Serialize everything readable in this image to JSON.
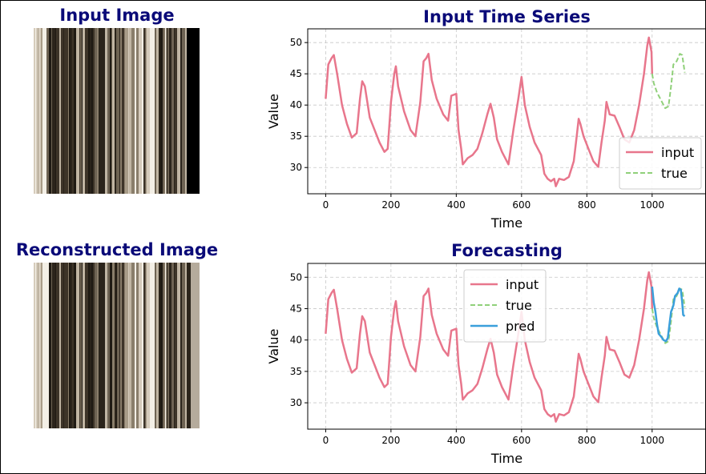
{
  "panels": {
    "input_image_title": "Input Image",
    "reconstructed_image_title": "Reconstructed Image"
  },
  "colors": {
    "title": "#0a0a78",
    "input": "#e8768c",
    "true": "#90d07a",
    "pred": "#3a9fdb",
    "grid": "#c8c8c8"
  },
  "chart_data": [
    {
      "type": "line",
      "title": "Input Time Series",
      "xlabel": "Time",
      "ylabel": "Value",
      "xlim": [
        -55,
        1165
      ],
      "ylim": [
        25.8,
        52.2
      ],
      "xticks": [
        0,
        200,
        400,
        600,
        800,
        1000
      ],
      "yticks": [
        30,
        35,
        40,
        45,
        50
      ],
      "grid": true,
      "legend_position": "lower-right",
      "series": [
        {
          "name": "input",
          "style": "solid",
          "color": "#e8768c",
          "points": [
            [
              0,
              41
            ],
            [
              8,
              46.5
            ],
            [
              18,
              47.5
            ],
            [
              25,
              48
            ],
            [
              35,
              45
            ],
            [
              50,
              40
            ],
            [
              65,
              37
            ],
            [
              80,
              34.8
            ],
            [
              95,
              35.5
            ],
            [
              105,
              41
            ],
            [
              112,
              43.8
            ],
            [
              120,
              43
            ],
            [
              135,
              38
            ],
            [
              150,
              36
            ],
            [
              165,
              34
            ],
            [
              180,
              32.5
            ],
            [
              190,
              33
            ],
            [
              200,
              40.5
            ],
            [
              210,
              45
            ],
            [
              215,
              46.2
            ],
            [
              222,
              43
            ],
            [
              240,
              39
            ],
            [
              260,
              36
            ],
            [
              275,
              35
            ],
            [
              290,
              40.5
            ],
            [
              300,
              47
            ],
            [
              308,
              47.5
            ],
            [
              315,
              48.2
            ],
            [
              325,
              44
            ],
            [
              340,
              41
            ],
            [
              360,
              38.5
            ],
            [
              375,
              37.5
            ],
            [
              385,
              41.5
            ],
            [
              400,
              41.8
            ],
            [
              407,
              36
            ],
            [
              415,
              33
            ],
            [
              420,
              30.5
            ],
            [
              435,
              31.5
            ],
            [
              450,
              32
            ],
            [
              465,
              33
            ],
            [
              480,
              35.5
            ],
            [
              495,
              38.5
            ],
            [
              505,
              40.2
            ],
            [
              515,
              38
            ],
            [
              525,
              34.5
            ],
            [
              540,
              32.5
            ],
            [
              560,
              30.5
            ],
            [
              575,
              36
            ],
            [
              590,
              41
            ],
            [
              600,
              44.5
            ],
            [
              610,
              40
            ],
            [
              625,
              36.5
            ],
            [
              640,
              34
            ],
            [
              660,
              32
            ],
            [
              670,
              29
            ],
            [
              680,
              28.2
            ],
            [
              690,
              27.8
            ],
            [
              700,
              28.2
            ],
            [
              705,
              27
            ],
            [
              715,
              28.2
            ],
            [
              730,
              28
            ],
            [
              745,
              28.5
            ],
            [
              760,
              31
            ],
            [
              770,
              35.5
            ],
            [
              775,
              37.8
            ],
            [
              780,
              37
            ],
            [
              790,
              35
            ],
            [
              805,
              33
            ],
            [
              820,
              31
            ],
            [
              835,
              30.1
            ],
            [
              845,
              34
            ],
            [
              855,
              37.5
            ],
            [
              860,
              40.5
            ],
            [
              870,
              38.5
            ],
            [
              885,
              38.3
            ],
            [
              900,
              36.5
            ],
            [
              915,
              34.5
            ],
            [
              930,
              34
            ],
            [
              945,
              36
            ],
            [
              960,
              40
            ],
            [
              975,
              45
            ],
            [
              985,
              49.5
            ],
            [
              990,
              50.8
            ],
            [
              998,
              48.5
            ],
            [
              1000,
              45
            ]
          ]
        },
        {
          "name": "true",
          "style": "dashed",
          "color": "#90d07a",
          "points": [
            [
              1000,
              45
            ],
            [
              1005,
              43.5
            ],
            [
              1015,
              42
            ],
            [
              1030,
              40.5
            ],
            [
              1040,
              39.5
            ],
            [
              1050,
              39.8
            ],
            [
              1058,
              43
            ],
            [
              1065,
              46.5
            ],
            [
              1075,
              47
            ],
            [
              1085,
              48.2
            ],
            [
              1092,
              48
            ],
            [
              1100,
              45.2
            ]
          ]
        }
      ]
    },
    {
      "type": "line",
      "title": "Forecasting",
      "xlabel": "Time",
      "ylabel": "Value",
      "xlim": [
        -55,
        1165
      ],
      "ylim": [
        25.8,
        52.2
      ],
      "xticks": [
        0,
        200,
        400,
        600,
        800,
        1000
      ],
      "yticks": [
        30,
        35,
        40,
        45,
        50
      ],
      "grid": true,
      "legend_position": "upper-center",
      "series": [
        {
          "name": "input",
          "style": "solid",
          "color": "#e8768c",
          "points": [
            [
              0,
              41
            ],
            [
              8,
              46.5
            ],
            [
              18,
              47.5
            ],
            [
              25,
              48
            ],
            [
              35,
              45
            ],
            [
              50,
              40
            ],
            [
              65,
              37
            ],
            [
              80,
              34.8
            ],
            [
              95,
              35.5
            ],
            [
              105,
              41
            ],
            [
              112,
              43.8
            ],
            [
              120,
              43
            ],
            [
              135,
              38
            ],
            [
              150,
              36
            ],
            [
              165,
              34
            ],
            [
              180,
              32.5
            ],
            [
              190,
              33
            ],
            [
              200,
              40.5
            ],
            [
              210,
              45
            ],
            [
              215,
              46.2
            ],
            [
              222,
              43
            ],
            [
              240,
              39
            ],
            [
              260,
              36
            ],
            [
              275,
              35
            ],
            [
              290,
              40.5
            ],
            [
              300,
              47
            ],
            [
              308,
              47.5
            ],
            [
              315,
              48.2
            ],
            [
              325,
              44
            ],
            [
              340,
              41
            ],
            [
              360,
              38.5
            ],
            [
              375,
              37.5
            ],
            [
              385,
              41.5
            ],
            [
              400,
              41.8
            ],
            [
              407,
              36
            ],
            [
              415,
              33
            ],
            [
              420,
              30.5
            ],
            [
              435,
              31.5
            ],
            [
              450,
              32
            ],
            [
              465,
              33
            ],
            [
              480,
              35.5
            ],
            [
              495,
              38.5
            ],
            [
              505,
              40.2
            ],
            [
              515,
              38
            ],
            [
              525,
              34.5
            ],
            [
              540,
              32.5
            ],
            [
              560,
              30.5
            ],
            [
              575,
              36
            ],
            [
              590,
              41
            ],
            [
              600,
              44.5
            ],
            [
              610,
              40
            ],
            [
              625,
              36.5
            ],
            [
              640,
              34
            ],
            [
              660,
              32
            ],
            [
              670,
              29
            ],
            [
              680,
              28.2
            ],
            [
              690,
              27.8
            ],
            [
              700,
              28.2
            ],
            [
              705,
              27
            ],
            [
              715,
              28.2
            ],
            [
              730,
              28
            ],
            [
              745,
              28.5
            ],
            [
              760,
              31
            ],
            [
              770,
              35.5
            ],
            [
              775,
              37.8
            ],
            [
              780,
              37
            ],
            [
              790,
              35
            ],
            [
              805,
              33
            ],
            [
              820,
              31
            ],
            [
              835,
              30.1
            ],
            [
              845,
              34
            ],
            [
              855,
              37.5
            ],
            [
              860,
              40.5
            ],
            [
              870,
              38.5
            ],
            [
              885,
              38.3
            ],
            [
              900,
              36.5
            ],
            [
              915,
              34.5
            ],
            [
              930,
              34
            ],
            [
              945,
              36
            ],
            [
              960,
              40
            ],
            [
              975,
              45
            ],
            [
              985,
              49.5
            ],
            [
              990,
              50.8
            ],
            [
              998,
              48.5
            ],
            [
              1000,
              45
            ]
          ]
        },
        {
          "name": "true",
          "style": "dashed",
          "color": "#90d07a",
          "points": [
            [
              1000,
              45
            ],
            [
              1005,
              43.5
            ],
            [
              1015,
              42
            ],
            [
              1030,
              40.5
            ],
            [
              1040,
              39.5
            ],
            [
              1050,
              39.8
            ],
            [
              1058,
              43
            ],
            [
              1065,
              46.5
            ],
            [
              1075,
              47
            ],
            [
              1085,
              48.2
            ],
            [
              1092,
              48
            ],
            [
              1100,
              45.2
            ]
          ]
        },
        {
          "name": "pred",
          "style": "solid",
          "color": "#3a9fdb",
          "points": [
            [
              1000,
              48.5
            ],
            [
              1005,
              46
            ],
            [
              1010,
              44.5
            ],
            [
              1015,
              42.5
            ],
            [
              1020,
              41
            ],
            [
              1028,
              40.5
            ],
            [
              1035,
              40
            ],
            [
              1042,
              39.8
            ],
            [
              1048,
              40.3
            ],
            [
              1053,
              42.5
            ],
            [
              1058,
              44.5
            ],
            [
              1065,
              45.5
            ],
            [
              1070,
              47
            ],
            [
              1078,
              47.5
            ],
            [
              1083,
              48.2
            ],
            [
              1088,
              48
            ],
            [
              1092,
              46
            ],
            [
              1095,
              44
            ],
            [
              1100,
              43.8
            ]
          ]
        }
      ]
    }
  ]
}
